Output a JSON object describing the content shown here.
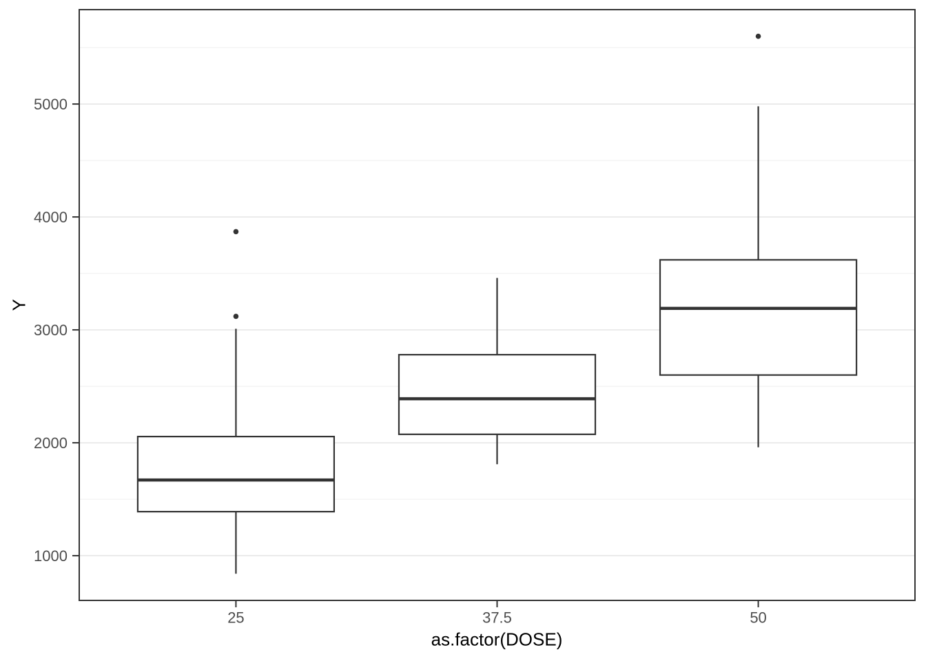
{
  "chart_data": {
    "type": "boxplot",
    "title": "",
    "xlabel": "as.factor(DOSE)",
    "ylabel": "Y",
    "categories": [
      "25",
      "37.5",
      "50"
    ],
    "series": [
      {
        "category": "25",
        "lower_whisker": 840,
        "q1": 1390,
        "median": 1670,
        "q3": 2055,
        "upper_whisker": 3010,
        "outliers": [
          3120,
          3870
        ]
      },
      {
        "category": "37.5",
        "lower_whisker": 1810,
        "q1": 2075,
        "median": 2390,
        "q3": 2780,
        "upper_whisker": 3460,
        "outliers": []
      },
      {
        "category": "50",
        "lower_whisker": 1960,
        "q1": 2600,
        "median": 3190,
        "q3": 3620,
        "upper_whisker": 4980,
        "outliers": [
          5600
        ]
      }
    ],
    "y_ticks": [
      1000,
      2000,
      3000,
      4000,
      5000
    ],
    "y_minor_ticks": [
      1500,
      2500,
      3500,
      4500,
      5500
    ],
    "ylim": [
      604,
      5836
    ],
    "grid": true,
    "legend": "none",
    "colors": {
      "box_stroke": "#333333",
      "box_fill": "#FFFFFF",
      "grid_major": "#E4E4E4",
      "grid_minor": "#EFEFEF",
      "panel_border": "#333333",
      "tick_label": "#4D4D4D",
      "axis_title": "#000000",
      "background": "#FFFFFF"
    }
  }
}
